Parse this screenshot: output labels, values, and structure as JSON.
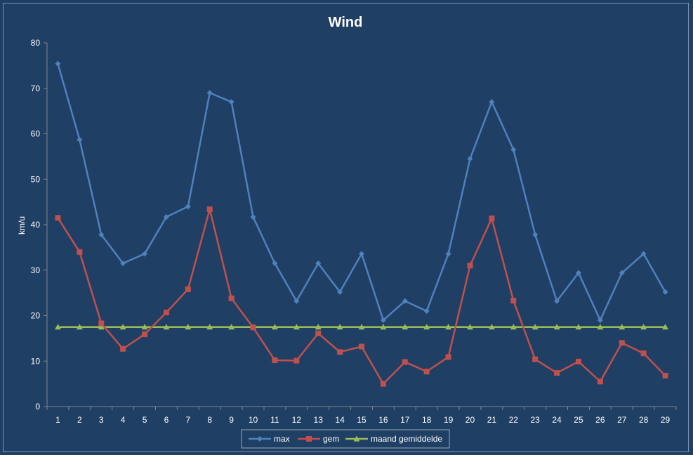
{
  "chart_data": {
    "type": "line",
    "title": "Wind",
    "ylabel": "km/u",
    "xlabel": "",
    "ylim": [
      0,
      80
    ],
    "yticks": [
      0,
      10,
      20,
      30,
      40,
      50,
      60,
      70,
      80
    ],
    "categories": [
      "1",
      "2",
      "3",
      "4",
      "5",
      "6",
      "7",
      "8",
      "9",
      "10",
      "11",
      "12",
      "13",
      "14",
      "15",
      "16",
      "17",
      "18",
      "19",
      "20",
      "21",
      "22",
      "23",
      "24",
      "25",
      "26",
      "27",
      "28",
      "29"
    ],
    "grid": false,
    "legend": "bottom",
    "series": [
      {
        "name": "max",
        "color": "#4F81BD",
        "marker": "diamond",
        "values": [
          75.4,
          58.7,
          37.8,
          31.5,
          33.6,
          41.7,
          44.0,
          69.0,
          67.0,
          41.7,
          31.5,
          23.2,
          31.5,
          25.2,
          33.6,
          19.0,
          23.2,
          21.0,
          33.6,
          54.5,
          67.0,
          56.5,
          37.8,
          23.2,
          29.4,
          19.0,
          29.4,
          33.6,
          25.2
        ]
      },
      {
        "name": "gem",
        "color": "#C0504D",
        "marker": "square",
        "values": [
          41.5,
          34.0,
          18.3,
          12.7,
          15.9,
          20.7,
          25.8,
          43.4,
          23.8,
          17.4,
          10.2,
          10.1,
          16.1,
          12.0,
          13.2,
          5.0,
          9.8,
          7.7,
          10.9,
          31.0,
          41.4,
          23.3,
          10.4,
          7.4,
          9.9,
          5.5,
          14.0,
          11.7,
          6.8
        ]
      },
      {
        "name": "maand gemiddelde",
        "color": "#9BBB59",
        "marker": "triangle",
        "values": [
          17.5,
          17.5,
          17.5,
          17.5,
          17.5,
          17.5,
          17.5,
          17.5,
          17.5,
          17.5,
          17.5,
          17.5,
          17.5,
          17.5,
          17.5,
          17.5,
          17.5,
          17.5,
          17.5,
          17.5,
          17.5,
          17.5,
          17.5,
          17.5,
          17.5,
          17.5,
          17.5,
          17.5,
          17.5
        ]
      }
    ]
  }
}
